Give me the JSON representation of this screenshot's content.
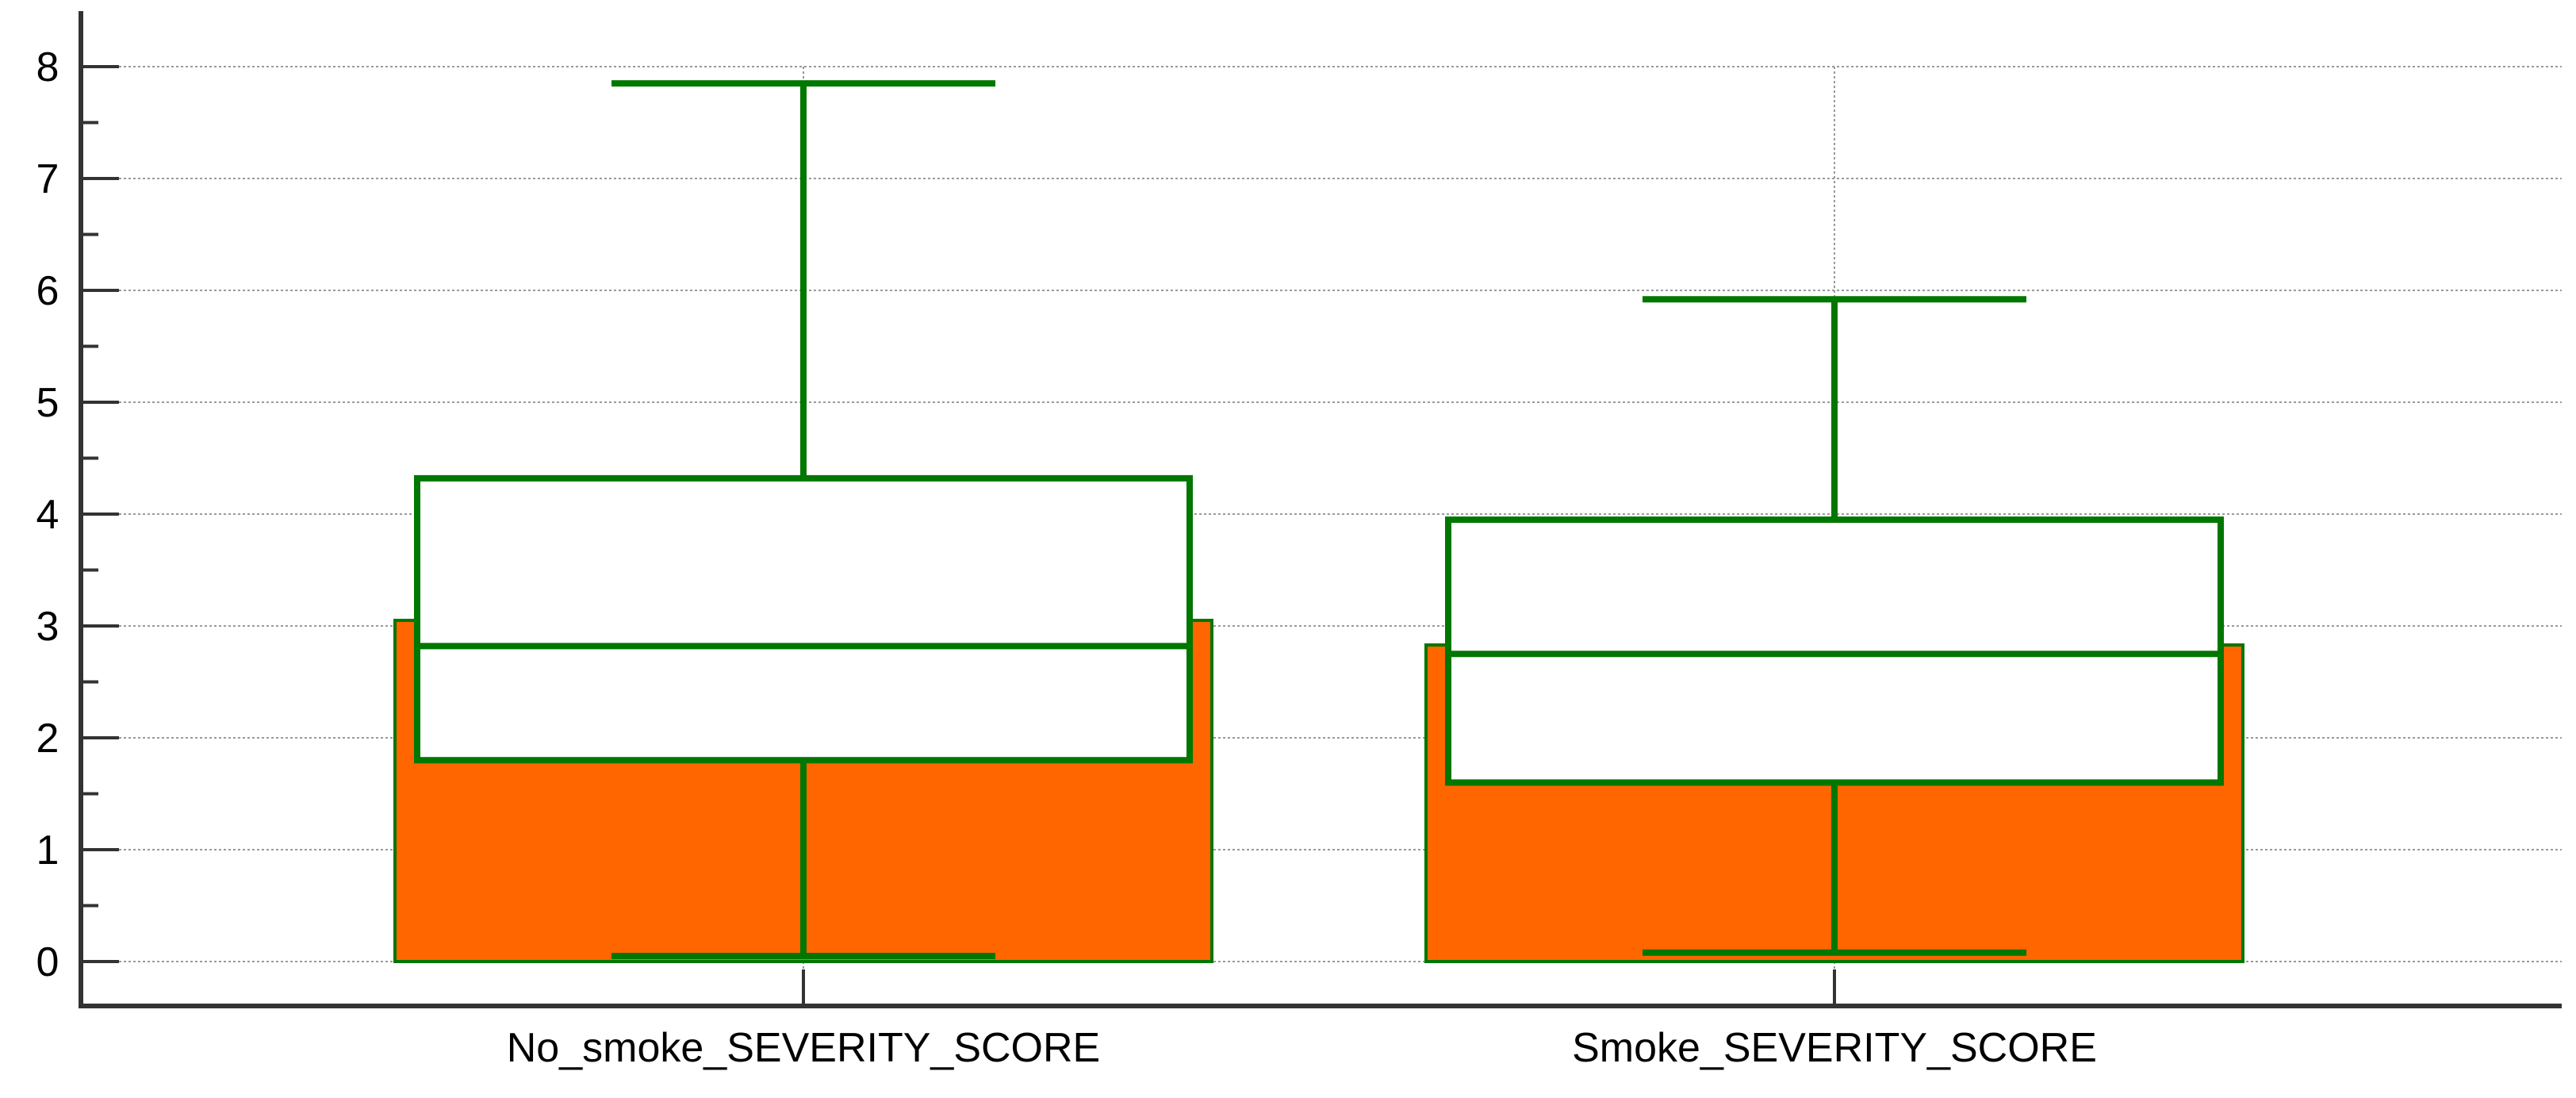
{
  "chart_data": {
    "type": "bar",
    "overlay": "box",
    "title": "",
    "xlabel": "",
    "ylabel": "",
    "ylim": [
      0,
      8
    ],
    "yticks": [
      "0",
      "1",
      "2",
      "3",
      "4",
      "5",
      "6",
      "7",
      "8"
    ],
    "grid": true,
    "categories": [
      "No_smoke_SEVERITY_SCORE",
      "Smoke_SEVERITY_SCORE"
    ],
    "values": [
      3.05,
      2.83
    ],
    "boxes": [
      {
        "min": 0.05,
        "q1": 1.8,
        "median": 2.82,
        "q3": 4.32,
        "max": 7.85
      },
      {
        "min": 0.08,
        "q1": 1.6,
        "median": 2.75,
        "q3": 3.95,
        "max": 5.92
      }
    ],
    "colors": {
      "bar_fill": "#ff6600",
      "box_stroke": "#007700",
      "box_fill": "#ffffff",
      "grid": "#9a9a9a",
      "axis": "#333333"
    }
  }
}
